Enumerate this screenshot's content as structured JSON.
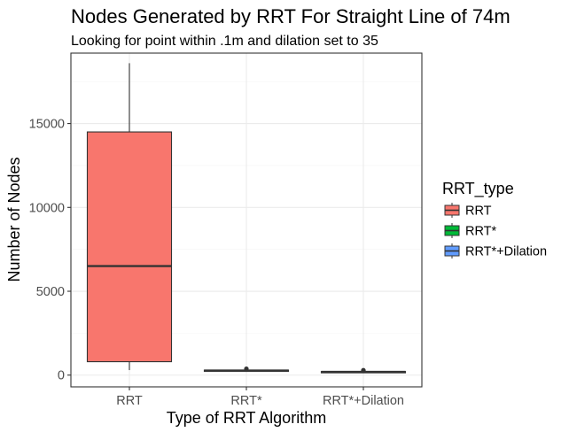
{
  "chart_data": {
    "type": "boxplot",
    "title": "Nodes Generated by RRT For Straight Line of 74m",
    "subtitle": "Looking for point within .1m and dilation set to 35",
    "xlabel": "Type of RRT Algorithm",
    "ylabel": "Number of Nodes",
    "ylim": [
      -700,
      19200
    ],
    "yticks": [
      0,
      5000,
      10000,
      15000
    ],
    "ytick_labels": [
      "0",
      "5000",
      "10000",
      "15000"
    ],
    "categories": [
      "RRT",
      "RRT*",
      "RRT*+Dilation"
    ],
    "boxes": [
      {
        "category": "RRT",
        "min": 300,
        "q1": 800,
        "median": 6500,
        "q3": 14500,
        "max": 18600,
        "outliers": [],
        "color": "#F8766D"
      },
      {
        "category": "RRT*",
        "min": 240,
        "q1": 255,
        "median": 275,
        "q3": 300,
        "max": 320,
        "outliers": [
          380
        ],
        "color": "#00BA38"
      },
      {
        "category": "RRT*+Dilation",
        "min": 160,
        "q1": 175,
        "median": 195,
        "q3": 215,
        "max": 235,
        "outliers": [
          260,
          290
        ],
        "color": "#619CFF"
      }
    ],
    "grid": true,
    "legend": {
      "title": "RRT_type",
      "position": "right",
      "entries": [
        "RRT",
        "RRT*",
        "RRT*+Dilation"
      ]
    }
  }
}
